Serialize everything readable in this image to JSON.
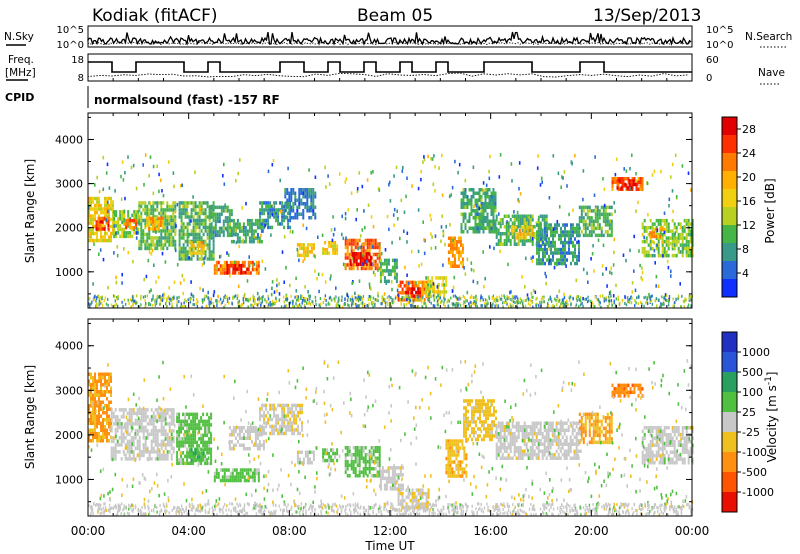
{
  "header": {
    "station": "Kodiak (fitACF)",
    "beam": "Beam 05",
    "date": "13/Sep/2013"
  },
  "strip": {
    "nsky_label": "N.Sky",
    "nsearch_label": "N.Search",
    "freq_label_top": "Freq.",
    "freq_label_unit": "[MHz]",
    "nave_label": "Nave",
    "cpid_label": "CPID",
    "cpid_value": "normalsound (fast) -157 RF",
    "noise_ticks_left": [
      "10^5",
      "10^0"
    ],
    "noise_ticks_right": [
      "10^5",
      "10^0"
    ],
    "freq_ticks": [
      "18",
      "8"
    ],
    "nave_ticks": [
      "60",
      "0"
    ]
  },
  "chart_data": [
    {
      "type": "heatmap",
      "title": "",
      "xlabel": "Time UT",
      "ylabel": "Slant Range [km]",
      "xlim": [
        0,
        24
      ],
      "ylim": [
        180,
        4600
      ],
      "x_ticks": [
        "00:00",
        "04:00",
        "08:00",
        "12:00",
        "16:00",
        "20:00",
        "00:00"
      ],
      "y_ticks": [
        "1000",
        "2000",
        "3000",
        "4000"
      ],
      "colorbar": {
        "label": "Power [dB]",
        "range": [
          0,
          30
        ],
        "tick_labels": [
          "4",
          "8",
          "12",
          "16",
          "20",
          "24",
          "28"
        ],
        "colors": [
          "#1030ff",
          "#2a6ad8",
          "#3a9a8a",
          "#45b545",
          "#b8d020",
          "#f0d010",
          "#ffb000",
          "#ff7a00",
          "#ff3000",
          "#e00000"
        ]
      },
      "echo_regions": [
        {
          "t0": 0.0,
          "t1": 1.0,
          "r0": 1700,
          "r1": 2700,
          "value": 16
        },
        {
          "t0": 0.3,
          "t1": 0.8,
          "r0": 1950,
          "r1": 2250,
          "value": 25
        },
        {
          "t0": 1.0,
          "t1": 2.0,
          "r0": 1800,
          "r1": 2400,
          "value": 12
        },
        {
          "t0": 1.4,
          "t1": 1.9,
          "r0": 2000,
          "r1": 2200,
          "value": 22
        },
        {
          "t0": 2.0,
          "t1": 3.5,
          "r0": 1500,
          "r1": 2600,
          "value": 11
        },
        {
          "t0": 2.3,
          "t1": 3.0,
          "r0": 2000,
          "r1": 2250,
          "value": 20
        },
        {
          "t0": 3.6,
          "t1": 5.0,
          "r0": 1300,
          "r1": 2600,
          "value": 10
        },
        {
          "t0": 4.0,
          "t1": 4.6,
          "r0": 1400,
          "r1": 1700,
          "value": 18
        },
        {
          "t0": 4.8,
          "t1": 5.7,
          "r0": 1850,
          "r1": 2500,
          "value": 9
        },
        {
          "t0": 5.0,
          "t1": 6.8,
          "r0": 950,
          "r1": 1250,
          "value": 22
        },
        {
          "t0": 5.5,
          "t1": 6.3,
          "r0": 1000,
          "r1": 1180,
          "value": 27
        },
        {
          "t0": 5.6,
          "t1": 6.9,
          "r0": 1700,
          "r1": 2200,
          "value": 9
        },
        {
          "t0": 6.8,
          "t1": 8.0,
          "r0": 2000,
          "r1": 2600,
          "value": 7
        },
        {
          "t0": 7.8,
          "t1": 9.0,
          "r0": 2200,
          "r1": 2900,
          "value": 6
        },
        {
          "t0": 8.3,
          "t1": 9.0,
          "r0": 1400,
          "r1": 1650,
          "value": 18
        },
        {
          "t0": 9.3,
          "t1": 9.9,
          "r0": 1400,
          "r1": 1700,
          "value": 17
        },
        {
          "t0": 10.2,
          "t1": 11.6,
          "r0": 1050,
          "r1": 1750,
          "value": 23
        },
        {
          "t0": 10.4,
          "t1": 11.2,
          "r0": 1150,
          "r1": 1450,
          "value": 28
        },
        {
          "t0": 11.6,
          "t1": 12.3,
          "r0": 800,
          "r1": 1300,
          "value": 9
        },
        {
          "t0": 12.3,
          "t1": 13.5,
          "r0": 350,
          "r1": 800,
          "value": 22
        },
        {
          "t0": 12.6,
          "t1": 13.2,
          "r0": 450,
          "r1": 650,
          "value": 28
        },
        {
          "t0": 13.4,
          "t1": 14.2,
          "r0": 500,
          "r1": 900,
          "value": 15
        },
        {
          "t0": 14.3,
          "t1": 14.9,
          "r0": 1100,
          "r1": 1800,
          "value": 21
        },
        {
          "t0": 14.8,
          "t1": 16.2,
          "r0": 1900,
          "r1": 2900,
          "value": 9
        },
        {
          "t0": 16.2,
          "t1": 18.2,
          "r0": 1600,
          "r1": 2300,
          "value": 10
        },
        {
          "t0": 16.8,
          "t1": 17.6,
          "r0": 1750,
          "r1": 2050,
          "value": 18
        },
        {
          "t0": 17.8,
          "t1": 19.5,
          "r0": 1200,
          "r1": 2100,
          "value": 8
        },
        {
          "t0": 19.5,
          "t1": 20.8,
          "r0": 1800,
          "r1": 2500,
          "value": 10
        },
        {
          "t0": 20.8,
          "t1": 22.0,
          "r0": 2850,
          "r1": 3150,
          "value": 23
        },
        {
          "t0": 21.0,
          "t1": 21.8,
          "r0": 2900,
          "r1": 3100,
          "value": 27
        },
        {
          "t0": 22.0,
          "t1": 24.0,
          "r0": 1400,
          "r1": 2200,
          "value": 12
        },
        {
          "t0": 22.3,
          "t1": 22.9,
          "r0": 1800,
          "r1": 2000,
          "value": 20
        }
      ]
    },
    {
      "type": "heatmap",
      "title": "",
      "xlabel": "Time UT",
      "ylabel": "Slant Range [km]",
      "xlim": [
        0,
        24
      ],
      "ylim": [
        180,
        4600
      ],
      "x_ticks": [
        "00:00",
        "04:00",
        "08:00",
        "12:00",
        "16:00",
        "20:00",
        "00:00"
      ],
      "y_ticks": [
        "1000",
        "2000",
        "3000",
        "4000"
      ],
      "colorbar": {
        "label": "Velocity [m s^-1]",
        "range": [
          -1200,
          1200
        ],
        "tick_labels": [
          "1000",
          "500",
          "100",
          "25",
          "-25",
          "-100",
          "-500",
          "-1000"
        ],
        "colors": [
          "#2030c0",
          "#2a55d8",
          "#2aa060",
          "#50c040",
          "#c8c8c8",
          "#f0c020",
          "#ff9010",
          "#ff5500",
          "#e81000"
        ]
      },
      "echo_regions": [
        {
          "t0": 0.0,
          "t1": 0.9,
          "r0": 1900,
          "r1": 3400,
          "value": -450
        },
        {
          "t0": 0.9,
          "t1": 3.4,
          "r0": 1500,
          "r1": 2600,
          "value": 0
        },
        {
          "t0": 3.5,
          "t1": 4.9,
          "r0": 1400,
          "r1": 2500,
          "value": 250
        },
        {
          "t0": 4.0,
          "t1": 4.6,
          "r0": 1400,
          "r1": 1700,
          "value": 350
        },
        {
          "t0": 5.0,
          "t1": 6.8,
          "r0": 950,
          "r1": 1250,
          "value": 250
        },
        {
          "t0": 5.6,
          "t1": 7.0,
          "r0": 1700,
          "r1": 2200,
          "value": 0
        },
        {
          "t0": 6.8,
          "t1": 8.5,
          "r0": 2000,
          "r1": 2700,
          "value": -60
        },
        {
          "t0": 8.3,
          "t1": 9.0,
          "r0": 1400,
          "r1": 1650,
          "value": 0
        },
        {
          "t0": 9.3,
          "t1": 9.9,
          "r0": 1400,
          "r1": 1700,
          "value": 150
        },
        {
          "t0": 10.2,
          "t1": 11.6,
          "r0": 1050,
          "r1": 1750,
          "value": 220
        },
        {
          "t0": 11.6,
          "t1": 12.5,
          "r0": 800,
          "r1": 1300,
          "value": 0
        },
        {
          "t0": 12.3,
          "t1": 13.5,
          "r0": 350,
          "r1": 800,
          "value": -90
        },
        {
          "t0": 14.2,
          "t1": 15.0,
          "r0": 1100,
          "r1": 1900,
          "value": -300
        },
        {
          "t0": 14.9,
          "t1": 16.2,
          "r0": 1900,
          "r1": 2800,
          "value": -250
        },
        {
          "t0": 16.2,
          "t1": 19.6,
          "r0": 1500,
          "r1": 2300,
          "value": 0
        },
        {
          "t0": 19.5,
          "t1": 20.8,
          "r0": 1800,
          "r1": 2500,
          "value": -400
        },
        {
          "t0": 20.8,
          "t1": 22.0,
          "r0": 2850,
          "r1": 3150,
          "value": -600
        },
        {
          "t0": 22.0,
          "t1": 24.0,
          "r0": 1400,
          "r1": 2200,
          "value": 0
        }
      ]
    }
  ]
}
